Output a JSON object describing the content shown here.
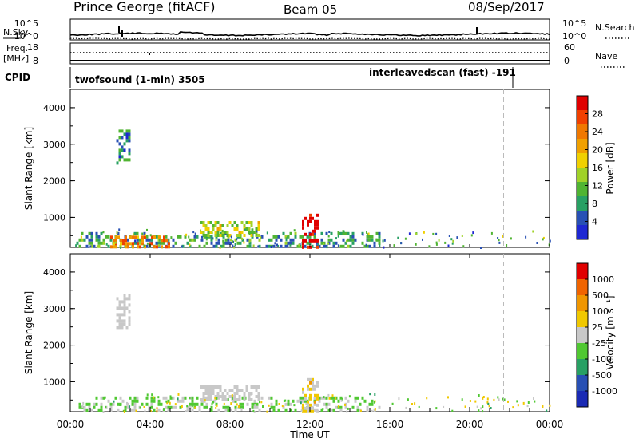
{
  "header": {
    "station": "Prince George (fitACF)",
    "beam": "Beam 05",
    "date": "08/Sep/2017"
  },
  "top_panels": {
    "nsky_label": "N.Sky",
    "nsearch_label": "N.Search",
    "nsky_ticks": [
      "10^5",
      "10^0"
    ],
    "nsearch_ticks": [
      "10^5",
      "10^0"
    ],
    "freq_label_1": "Freq.",
    "freq_label_2": "[MHz]",
    "freq_ticks": [
      "18",
      "8"
    ],
    "nave_label": "Nave",
    "nave_ticks": [
      "60",
      "0"
    ],
    "cpid_label": "CPID",
    "cpid_segments": [
      "twofsound (1-min) 3505",
      "interleavedscan (fast) -191"
    ]
  },
  "colorbars": {
    "power": {
      "label": "Power [dB]",
      "ticks": [
        "28",
        "24",
        "20",
        "16",
        "12",
        "8",
        "4"
      ],
      "colors": [
        "#1e28d2",
        "#2850b4",
        "#28a064",
        "#50b432",
        "#a0d228",
        "#f0d000",
        "#f0a000",
        "#f07800",
        "#f04000",
        "#e00000"
      ]
    },
    "velocity": {
      "label": "Velocity [m s⁻¹]",
      "ticks": [
        "1000",
        "500",
        "100",
        "25",
        "-25",
        "-100",
        "-500",
        "-1000"
      ],
      "colors": [
        "#1a2ab4",
        "#2850b4",
        "#28a064",
        "#50c832",
        "#c8c8c8",
        "#f0c800",
        "#f09600",
        "#f06400",
        "#e00000"
      ]
    }
  },
  "chart_data": [
    {
      "type": "heatmap",
      "panel": "power",
      "ylabel": "Slant Range [km]",
      "xlabel": "",
      "ylim": [
        180,
        4500
      ],
      "yticks": [
        "1000",
        "2000",
        "3000",
        "4000"
      ],
      "xticks": [
        "00:00",
        "04:00",
        "08:00",
        "12:00",
        "16:00",
        "20:00",
        "00:00"
      ],
      "value_range_dB": [
        0,
        30
      ],
      "echo_regions": [
        {
          "t_start_h": 0.3,
          "t_end_h": 15.5,
          "range_km": [
            200,
            600
          ],
          "power_dB": 8
        },
        {
          "t_start_h": 2.0,
          "t_end_h": 5.0,
          "range_km": [
            200,
            500
          ],
          "power_dB": 22
        },
        {
          "t_start_h": 6.5,
          "t_end_h": 9.5,
          "range_km": [
            550,
            900
          ],
          "power_dB": 14
        },
        {
          "t_start_h": 2.3,
          "t_end_h": 3.0,
          "range_km": [
            2500,
            3400
          ],
          "power_dB": 6
        },
        {
          "t_start_h": 11.6,
          "t_end_h": 12.4,
          "range_km": [
            200,
            1100
          ],
          "power_dB": 30
        }
      ],
      "markers": {
        "interleaved_start_h": 21.7
      }
    },
    {
      "type": "heatmap",
      "panel": "velocity",
      "ylabel": "Slant Range [km]",
      "xlabel": "Time UT",
      "ylim": [
        180,
        4500
      ],
      "yticks": [
        "1000",
        "2000",
        "3000",
        "4000"
      ],
      "xticks": [
        "00:00",
        "04:00",
        "08:00",
        "12:00",
        "16:00",
        "20:00",
        "00:00"
      ],
      "value_range_ms": [
        -1000,
        1000
      ],
      "echo_regions": [
        {
          "t_start_h": 0.3,
          "t_end_h": 15.5,
          "range_km": [
            200,
            600
          ],
          "velocity_ms": -120
        },
        {
          "t_start_h": 6.5,
          "t_end_h": 9.5,
          "range_km": [
            550,
            900
          ],
          "velocity_ms": 0
        },
        {
          "t_start_h": 2.3,
          "t_end_h": 3.0,
          "range_km": [
            2500,
            3400
          ],
          "velocity_ms": 0
        },
        {
          "t_start_h": 11.6,
          "t_end_h": 12.4,
          "range_km": [
            200,
            1100
          ],
          "velocity_ms": 150
        }
      ],
      "markers": {
        "interleaved_start_h": 21.7
      }
    }
  ]
}
